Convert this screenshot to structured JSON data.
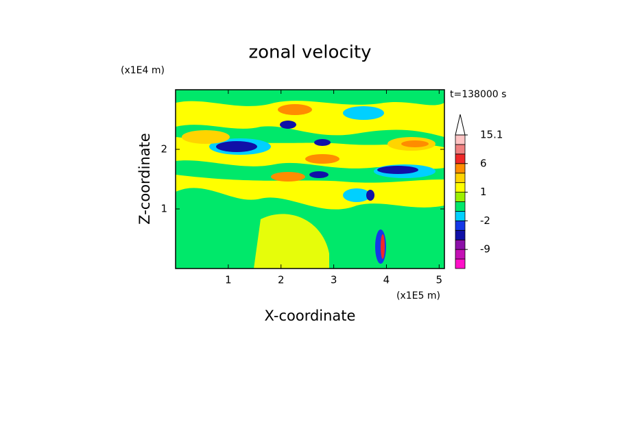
{
  "chart_data": {
    "type": "contourf",
    "title": "zonal velocity",
    "x_label": "X-coordinate",
    "y_label": "Z-coordinate",
    "x_unit": "(x1E5 m)",
    "y_unit": "(x1E4 m)",
    "time_label": "t=138000 s",
    "xlim": [
      0,
      5.1
    ],
    "xticks": [
      1,
      2,
      3,
      4,
      5
    ],
    "ylim": [
      0,
      3
    ],
    "yticks": [
      1,
      2
    ],
    "colorbar": {
      "colors": [
        "#ff10c8",
        "#c410b4",
        "#8c10a8",
        "#1010a8",
        "#1438e8",
        "#00d0ff",
        "#00e86a",
        "#9cf000",
        "#ffff00",
        "#ffd400",
        "#ff8c00",
        "#f02828",
        "#f08080",
        "#ffc4c4"
      ],
      "levels": [
        -12,
        -9,
        -6,
        -4,
        -2,
        -1,
        0,
        1,
        2,
        4,
        6,
        9,
        12,
        15.1
      ],
      "ticks": [
        15.1,
        6,
        1,
        -2,
        -9
      ],
      "extend_color": "#ffffff"
    }
  }
}
